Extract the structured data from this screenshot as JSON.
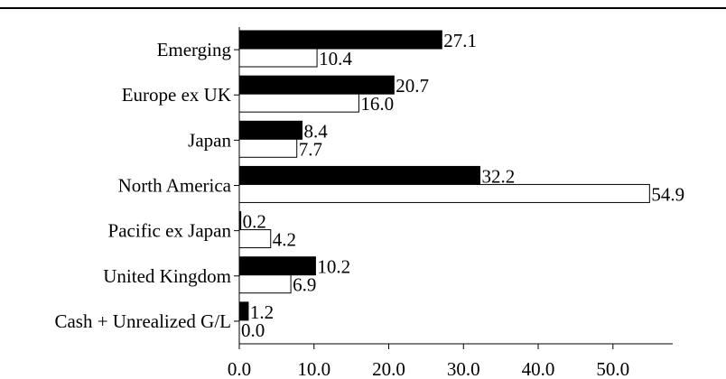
{
  "chart_data": {
    "type": "bar",
    "orientation": "horizontal",
    "categories": [
      "Emerging",
      "Europe ex UK",
      "Japan",
      "North America",
      "Pacific ex Japan",
      "United Kingdom",
      "Cash + Unrealized G/L"
    ],
    "series": [
      {
        "values": [
          27.1,
          20.7,
          8.4,
          32.2,
          0.2,
          10.2,
          1.2
        ],
        "labels": [
          "27.1",
          "20.7",
          "8.4",
          "32.2",
          "0.2",
          "10.2",
          "1.2"
        ],
        "color": "#000000"
      },
      {
        "values": [
          10.4,
          16.0,
          7.7,
          54.9,
          4.2,
          6.9,
          0.0
        ],
        "labels": [
          "10.4",
          "16.0",
          "7.7",
          "54.9",
          "4.2",
          "6.9",
          "0.0"
        ],
        "color": "#ffffff"
      }
    ],
    "x_ticks": [
      0,
      10,
      20,
      30,
      40,
      50
    ],
    "x_tick_labels": [
      "0.0",
      "10.0",
      "20.0",
      "30.0",
      "40.0",
      "50.0"
    ],
    "xlim": [
      0,
      58
    ],
    "title": "",
    "xlabel": "",
    "ylabel": "",
    "grid": false,
    "legend": "none"
  }
}
